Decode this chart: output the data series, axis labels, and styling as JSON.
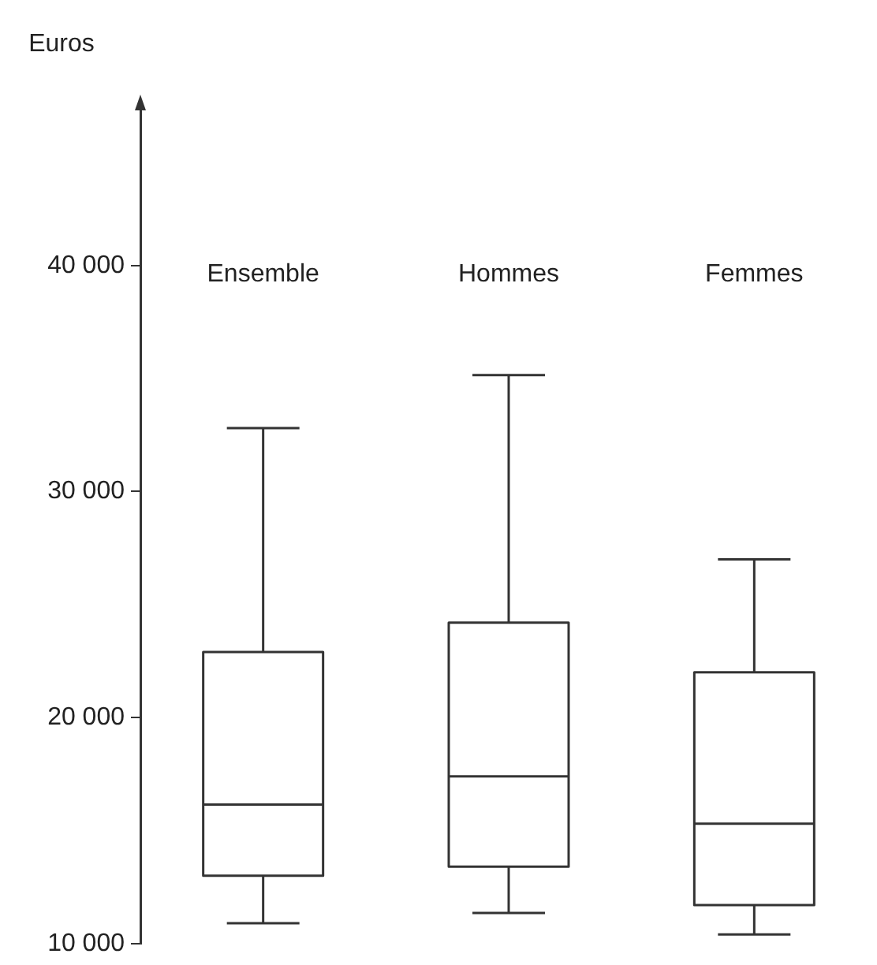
{
  "chart_data": {
    "type": "box",
    "ylabel": "Euros",
    "categories": [
      "Ensemble",
      "Hommes",
      "Femmes"
    ],
    "boxes": [
      {
        "low": 10900,
        "q1": 13000,
        "median": 16150,
        "q3": 22900,
        "high": 32800
      },
      {
        "low": 11350,
        "q1": 13400,
        "median": 17400,
        "q3": 24200,
        "high": 35150
      },
      {
        "low": 10400,
        "q1": 11700,
        "median": 15300,
        "q3": 22000,
        "high": 27000
      }
    ],
    "color": "#333333",
    "ylim": [
      10000,
      47000
    ],
    "yticks": [
      {
        "value": 10000,
        "label": "10 000"
      },
      {
        "value": 20000,
        "label": "20 000"
      },
      {
        "value": 30000,
        "label": "30 000"
      },
      {
        "value": 40000,
        "label": "40 000"
      }
    ],
    "grid": false
  }
}
